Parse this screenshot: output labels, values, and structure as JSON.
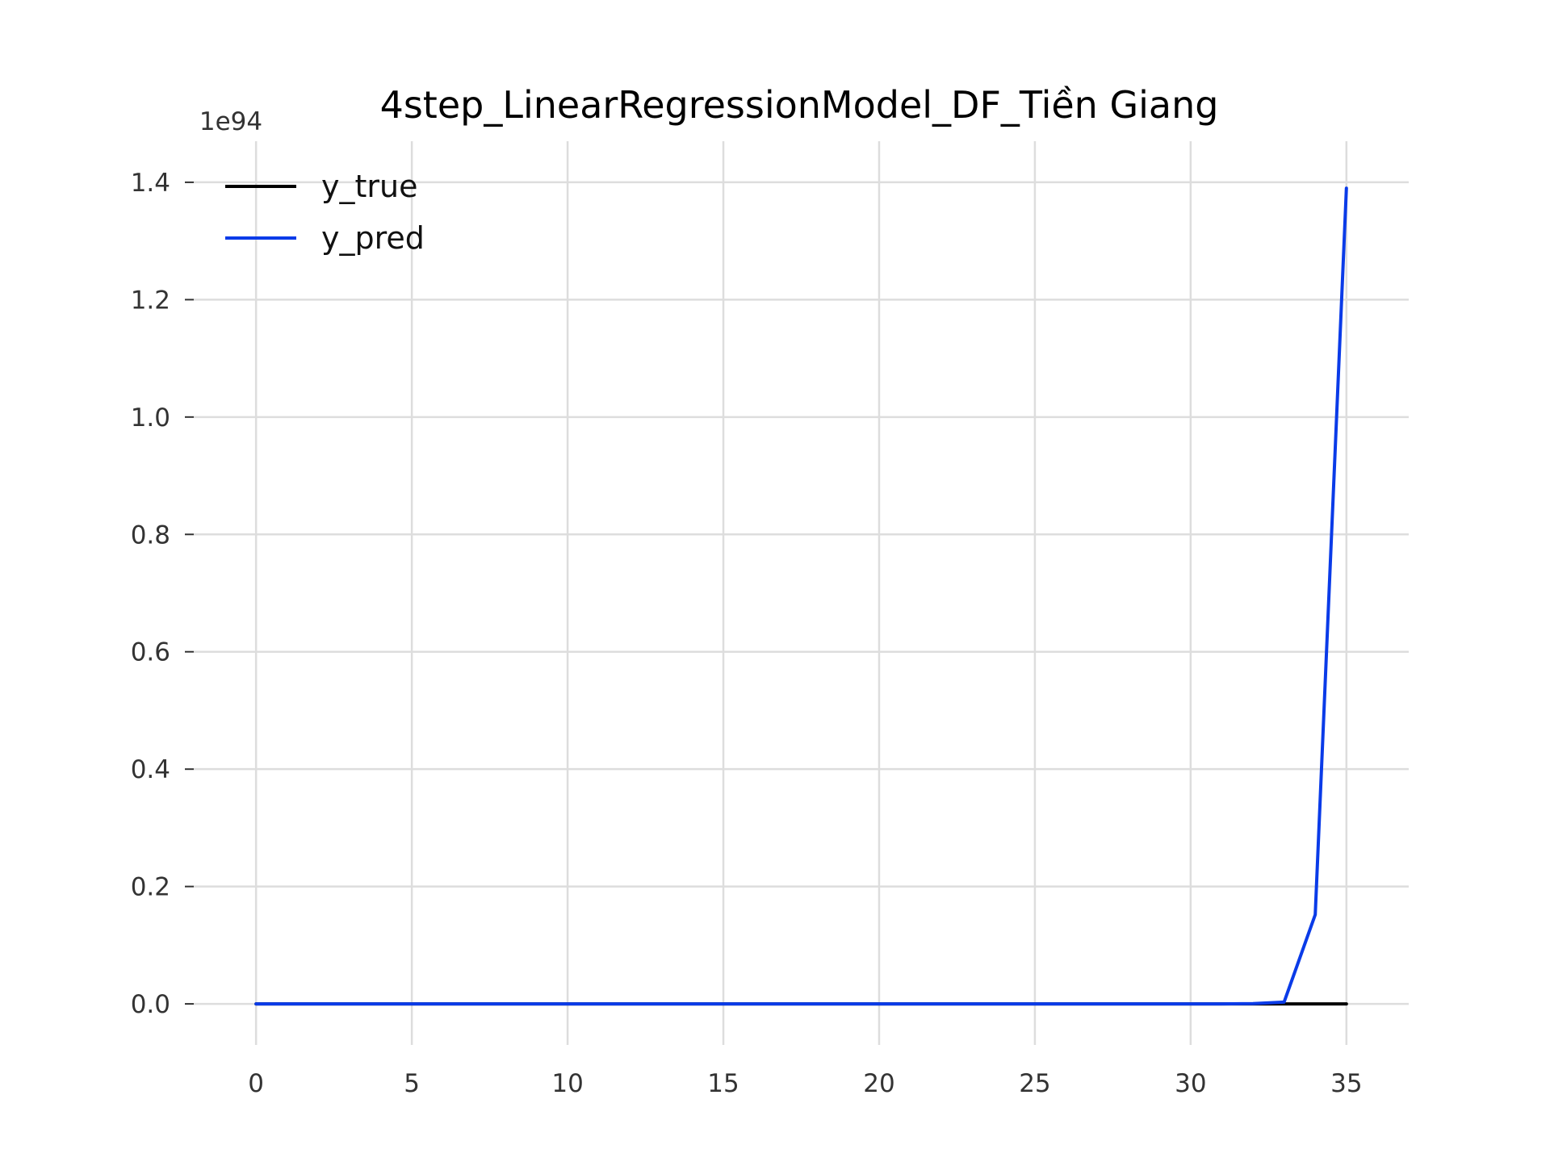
{
  "chart_data": {
    "type": "line",
    "title": "4step_LinearRegressionModel_DF_Tiền Giang",
    "xlabel": "",
    "ylabel": "",
    "y_offset_label": "1e94",
    "xlim": [
      -2,
      37
    ],
    "ylim": [
      -0.07,
      1.47
    ],
    "x_ticks": [
      0,
      5,
      10,
      15,
      20,
      25,
      30,
      35
    ],
    "x_tick_labels": [
      "0",
      "5",
      "10",
      "15",
      "20",
      "25",
      "30",
      "35"
    ],
    "y_ticks": [
      0.0,
      0.2,
      0.4,
      0.6,
      0.8,
      1.0,
      1.2,
      1.4
    ],
    "y_tick_labels": [
      "0.0",
      "0.2",
      "0.4",
      "0.6",
      "0.8",
      "1.0",
      "1.2",
      "1.4"
    ],
    "grid": true,
    "legend_position": "top-left",
    "series": [
      {
        "name": "y_true",
        "color": "#000000",
        "x": [
          0,
          1,
          2,
          3,
          4,
          5,
          6,
          7,
          8,
          9,
          10,
          11,
          12,
          13,
          14,
          15,
          16,
          17,
          18,
          19,
          20,
          21,
          22,
          23,
          24,
          25,
          26,
          27,
          28,
          29,
          30,
          31,
          32,
          33,
          34,
          35
        ],
        "values": [
          0,
          0,
          0,
          0,
          0,
          0,
          0,
          0,
          0,
          0,
          0,
          0,
          0,
          0,
          0,
          0,
          0,
          0,
          0,
          0,
          0,
          0,
          0,
          0,
          0,
          0,
          0,
          0,
          0,
          0,
          0,
          0,
          0,
          0,
          0,
          0
        ]
      },
      {
        "name": "y_pred",
        "color": "#0a3be8",
        "x": [
          0,
          1,
          2,
          3,
          4,
          5,
          6,
          7,
          8,
          9,
          10,
          11,
          12,
          13,
          14,
          15,
          16,
          17,
          18,
          19,
          20,
          21,
          22,
          23,
          24,
          25,
          26,
          27,
          28,
          29,
          30,
          31,
          32,
          33,
          34,
          35
        ],
        "values": [
          0,
          0,
          0,
          0,
          0,
          0,
          0,
          0,
          0,
          0,
          0,
          0,
          0,
          0,
          0,
          0,
          0,
          0,
          0,
          0,
          0,
          0,
          0,
          0,
          0,
          0,
          0,
          0,
          0,
          0,
          0,
          0,
          0.0005,
          0.003,
          0.152,
          1.39
        ]
      }
    ]
  }
}
